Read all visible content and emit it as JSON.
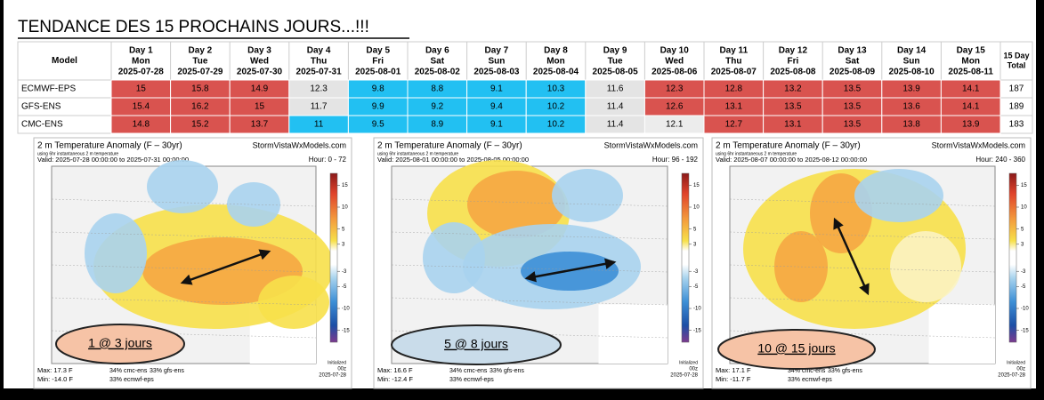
{
  "title": "TENDANCE  DES 15 PROCHAINS JOURS...!!!",
  "table": {
    "header": {
      "model": "Model",
      "total": "15 Day Total",
      "days": [
        {
          "day": "Day 1",
          "weekday": "Mon",
          "date": "2025-07-28"
        },
        {
          "day": "Day 2",
          "weekday": "Tue",
          "date": "2025-07-29"
        },
        {
          "day": "Day 3",
          "weekday": "Wed",
          "date": "2025-07-30"
        },
        {
          "day": "Day 4",
          "weekday": "Thu",
          "date": "2025-07-31"
        },
        {
          "day": "Day 5",
          "weekday": "Fri",
          "date": "2025-08-01"
        },
        {
          "day": "Day 6",
          "weekday": "Sat",
          "date": "2025-08-02"
        },
        {
          "day": "Day 7",
          "weekday": "Sun",
          "date": "2025-08-03"
        },
        {
          "day": "Day 8",
          "weekday": "Mon",
          "date": "2025-08-04"
        },
        {
          "day": "Day 9",
          "weekday": "Tue",
          "date": "2025-08-05"
        },
        {
          "day": "Day 10",
          "weekday": "Wed",
          "date": "2025-08-06"
        },
        {
          "day": "Day 11",
          "weekday": "Thu",
          "date": "2025-08-07"
        },
        {
          "day": "Day 12",
          "weekday": "Fri",
          "date": "2025-08-08"
        },
        {
          "day": "Day 13",
          "weekday": "Sat",
          "date": "2025-08-09"
        },
        {
          "day": "Day 14",
          "weekday": "Sun",
          "date": "2025-08-10"
        },
        {
          "day": "Day 15",
          "weekday": "Mon",
          "date": "2025-08-11"
        }
      ]
    },
    "rows": [
      {
        "model": "ECMWF-EPS",
        "values": [
          15,
          15.8,
          14.9,
          12.3,
          9.8,
          8.8,
          9.1,
          10.3,
          11.6,
          12.3,
          12.8,
          13.2,
          13.5,
          13.9,
          14.1
        ],
        "total": 187,
        "colors": [
          "#d9534f",
          "#d9534f",
          "#d9534f",
          "#e4e4e4",
          "#22c0f2",
          "#22c0f2",
          "#22c0f2",
          "#22c0f2",
          "#e4e4e4",
          "#d9534f",
          "#d9534f",
          "#d9534f",
          "#d9534f",
          "#d9534f",
          "#d9534f"
        ]
      },
      {
        "model": "GFS-ENS",
        "values": [
          15.4,
          16.2,
          15,
          11.7,
          9.9,
          9.2,
          9.4,
          10.2,
          11.4,
          12.6,
          13.1,
          13.5,
          13.5,
          13.6,
          14.1
        ],
        "total": 189,
        "colors": [
          "#d9534f",
          "#d9534f",
          "#d9534f",
          "#e4e4e4",
          "#22c0f2",
          "#22c0f2",
          "#22c0f2",
          "#22c0f2",
          "#e4e4e4",
          "#d9534f",
          "#d9534f",
          "#d9534f",
          "#d9534f",
          "#d9534f",
          "#d9534f"
        ]
      },
      {
        "model": "CMC-ENS",
        "values": [
          14.8,
          15.2,
          13.7,
          11,
          9.5,
          8.9,
          9.1,
          10.2,
          11.4,
          12.1,
          12.7,
          13.1,
          13.5,
          13.8,
          13.9
        ],
        "total": 183,
        "colors": [
          "#d9534f",
          "#d9534f",
          "#d9534f",
          "#22c0f2",
          "#22c0f2",
          "#22c0f2",
          "#22c0f2",
          "#22c0f2",
          "#e4e4e4",
          "#ececec",
          "#d9534f",
          "#d9534f",
          "#d9534f",
          "#d9534f",
          "#d9534f"
        ]
      }
    ]
  },
  "legend_ticks": [
    15,
    10,
    5,
    3,
    -3,
    -5,
    -10,
    -15
  ],
  "maps": [
    {
      "title": "2 m Temperature Anomaly (F – 30yr)",
      "site": "StormVistaWxModels.com",
      "subtitle": "using 6hr instantaneous 2 m temperature",
      "valid": "Valid: 2025-07-28 00:00:00 to 2025-07-31 00:00:00",
      "hour": "Hour: 0 - 72",
      "max": "Max: 17.3 F",
      "min": "Min: -14.0 F",
      "weights": [
        "34% cmc-ens",
        "33% gfs-ens",
        "33% ecmwf-eps"
      ],
      "initialized": "Initialized",
      "init_time": "00z",
      "init_date": "2025-07-28",
      "label": "1 @ 3 jours",
      "label_color": "#f6c3a6"
    },
    {
      "title": "2 m Temperature Anomaly (F – 30yr)",
      "site": "StormVistaWxModels.com",
      "subtitle": "using 6hr instantaneous 2 m temperature",
      "valid": "Valid: 2025-08-01 00:00:00 to 2025-08-05 00:00:00",
      "hour": "Hour: 96 - 192",
      "max": "Max: 16.6 F",
      "min": "Min: -12.4 F",
      "weights": [
        "34% cmc-ens",
        "33% gfs-ens",
        "33% ecmwf-eps"
      ],
      "initialized": "Initialized",
      "init_time": "00z",
      "init_date": "2025-07-28",
      "label": "5 @ 8 jours",
      "label_color": "#c9dcea"
    },
    {
      "title": "2 m Temperature Anomaly (F – 30yr)",
      "site": "StormVistaWxModels.com",
      "subtitle": "using 6hr instantaneous 2 m temperature",
      "valid": "Valid: 2025-08-07 00:00:00 to 2025-08-12 00:00:00",
      "hour": "Hour: 240 - 360",
      "max": "Max: 17.1 F",
      "min": "Min: -11.7 F",
      "weights": [
        "34% cmc-ens",
        "33% gfs-ens",
        "33% ecmwf-eps"
      ],
      "initialized": "Initialized",
      "init_time": "00z",
      "init_date": "2025-07-28",
      "label": "10 @ 15 jours",
      "label_color": "#f6c3a6"
    }
  ]
}
